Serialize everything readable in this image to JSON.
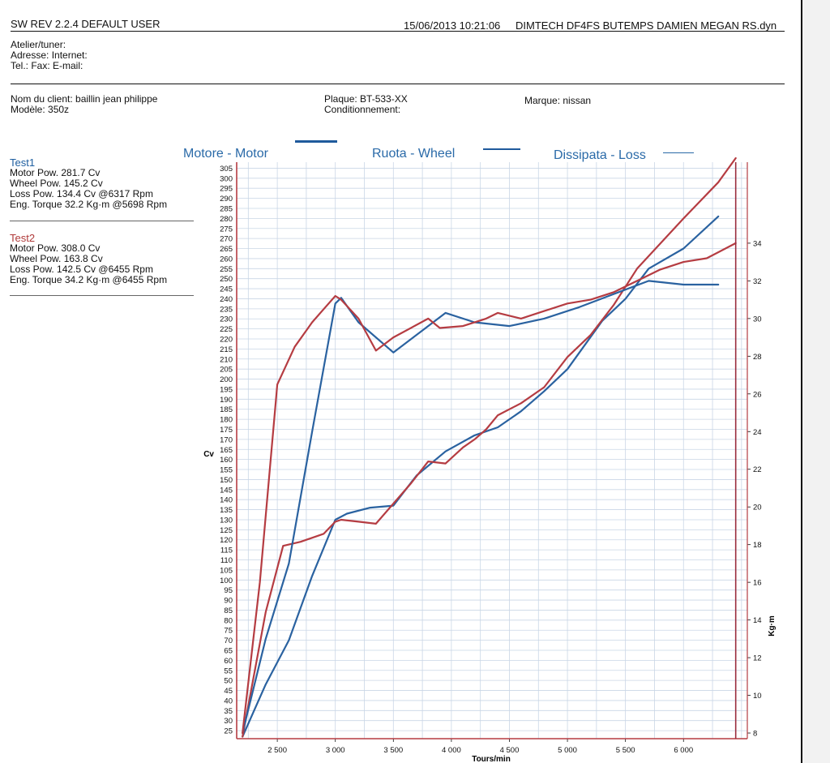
{
  "header": {
    "left": "SW REV 2.2.4   DEFAULT USER",
    "datetime": "15/06/2013 10:21:06",
    "file": "DIMTECH DF4FS   BUTEMPS DAMIEN MEGAN RS.dyn"
  },
  "workshop": {
    "line1": "Atelier/tuner:",
    "line2": "Adresse:  Internet:",
    "line3": "Tel.:  Fax:  E-mail:"
  },
  "client": {
    "name": "Nom du client: baillin jean philippe",
    "model": "Modèle: 350z",
    "plate": "Plaque: BT-533-XX",
    "conditioning": "Conditionnement:",
    "brand": "Marque: nissan"
  },
  "tests": [
    {
      "title": "Test1",
      "lines": [
        "Motor Pow.   281.7 Cv",
        "Wheel Pow.  145.2 Cv",
        "Loss Pow.    134.4 Cv  @6317 Rpm",
        "Eng. Torque  32.2 Kg·m   @5698 Rpm"
      ]
    },
    {
      "title": "Test2",
      "lines": [
        "Motor Pow.   308.0 Cv",
        "Wheel Pow.  163.8 Cv",
        "Loss Pow.    142.5 Cv   @6455 Rpm",
        "Eng. Torque  34.2 Kg·m   @6455 Rpm"
      ]
    }
  ],
  "colors": {
    "test1": "#2a62a0",
    "test2": "#b53c42",
    "grid": "#c9d6e6",
    "legend": "#2a6aa8"
  },
  "chart_data": {
    "type": "line",
    "legend": [
      "Motore - Motor",
      "Ruota - Wheel",
      "Dissipata - Loss"
    ],
    "xlabel": "Tours/min",
    "ylabel_left": "Cv",
    "ylabel_right": "Kg·m",
    "xlim": [
      2150,
      6550
    ],
    "ylim_left": [
      21,
      308
    ],
    "ylim_right": [
      7.7,
      38.3
    ],
    "xticks": [
      "2 500",
      "3 000",
      "3 500",
      "4 000",
      "4 500",
      "5 000",
      "5 500",
      "6 000"
    ],
    "xtick_values": [
      2500,
      3000,
      3500,
      4000,
      4500,
      5000,
      5500,
      6000
    ],
    "yticks_left": [
      25,
      30,
      35,
      40,
      45,
      50,
      55,
      60,
      65,
      70,
      75,
      80,
      85,
      90,
      95,
      100,
      105,
      110,
      115,
      120,
      125,
      130,
      135,
      140,
      145,
      150,
      155,
      160,
      165,
      170,
      175,
      180,
      185,
      190,
      195,
      200,
      205,
      210,
      215,
      220,
      225,
      230,
      235,
      240,
      245,
      250,
      255,
      260,
      265,
      270,
      275,
      280,
      285,
      290,
      295,
      300,
      305
    ],
    "yticks_right": [
      8,
      10,
      12,
      14,
      16,
      18,
      20,
      22,
      24,
      26,
      28,
      30,
      32,
      34
    ],
    "marker_rpm": 6450,
    "series": [
      {
        "name": "Test1 Motor",
        "axis": "left",
        "x": [
          2200,
          2400,
          2600,
          2800,
          3000,
          3100,
          3300,
          3500,
          3700,
          3950,
          4200,
          4400,
          4600,
          4800,
          5000,
          5300,
          5500,
          5700,
          6000,
          6300
        ],
        "y": [
          22,
          48,
          70,
          102,
          130,
          133,
          136,
          137,
          152,
          164,
          172,
          176,
          184,
          194,
          205,
          229,
          240,
          255,
          265,
          281
        ]
      },
      {
        "name": "Test2 Motor",
        "axis": "left",
        "x": [
          2200,
          2400,
          2550,
          2700,
          2900,
          3000,
          3050,
          3200,
          3350,
          3500,
          3650,
          3800,
          3950,
          4100,
          4200,
          4300,
          4400,
          4600,
          4800,
          5000,
          5200,
          5400,
          5600,
          6000,
          6300,
          6450
        ],
        "y": [
          22,
          84,
          117,
          119,
          123,
          129,
          130,
          129,
          128,
          138,
          148,
          159,
          158,
          166,
          170,
          175,
          182,
          188,
          196,
          211,
          222,
          237,
          255,
          280,
          298,
          310
        ]
      },
      {
        "name": "Test1 Torque",
        "axis": "right",
        "x": [
          2200,
          2400,
          2600,
          2800,
          3000,
          3050,
          3200,
          3500,
          3800,
          3950,
          4200,
          4500,
          4800,
          5100,
          5400,
          5700,
          6000,
          6300
        ],
        "y": [
          8,
          13,
          17,
          24,
          30.8,
          31.1,
          29.8,
          28.2,
          29.6,
          30.3,
          29.8,
          29.6,
          30,
          30.6,
          31.3,
          32,
          31.8,
          31.8
        ]
      },
      {
        "name": "Test2 Torque",
        "axis": "right",
        "x": [
          2200,
          2350,
          2500,
          2650,
          2800,
          2900,
          3000,
          3050,
          3200,
          3350,
          3500,
          3800,
          3900,
          4100,
          4300,
          4400,
          4600,
          4800,
          5000,
          5200,
          5400,
          5600,
          5800,
          6000,
          6200,
          6450
        ],
        "y": [
          8,
          16,
          26.5,
          28.5,
          29.8,
          30.5,
          31.2,
          31,
          30,
          28.3,
          29,
          30,
          29.5,
          29.6,
          30,
          30.3,
          30,
          30.4,
          30.8,
          31,
          31.4,
          32,
          32.6,
          33,
          33.2,
          34
        ]
      }
    ]
  }
}
